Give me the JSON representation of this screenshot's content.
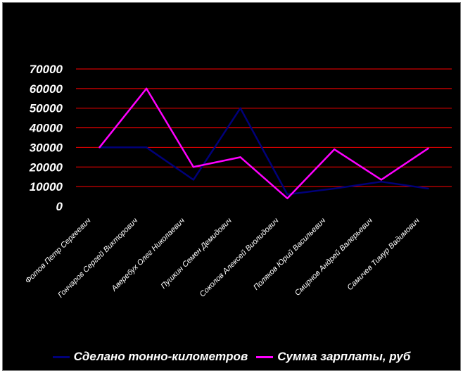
{
  "chart_data": {
    "type": "line",
    "categories": [
      "Фотов Петр Сергеевич",
      "Гончаров Сергей Викторович",
      "Аверебух Олег Николаевич",
      "Пушкин Семен Демидович",
      "Соколов Алексей Виолидович",
      "Поляков Юрий Васильевич",
      "Смирнов Андрей Валерьевич",
      "Самичев Тимур Вадимович"
    ],
    "series": [
      {
        "name": "Сделано тонно-километров",
        "color": "#00007a",
        "values": [
          30000,
          30000,
          13500,
          50000,
          6000,
          9000,
          12500,
          9000
        ]
      },
      {
        "name": "Сумма зарплаты, руб",
        "color": "#ff00ff",
        "values": [
          30000,
          60000,
          20000,
          25000,
          4000,
          29000,
          13500,
          29500
        ]
      }
    ],
    "ylim": [
      0,
      70000
    ],
    "yticks": [
      "70000",
      "60000",
      "50000",
      "40000",
      "30000",
      "20000",
      "10000",
      "0"
    ],
    "grid": true,
    "grid_color": "#ff0000",
    "background": "#000000",
    "legend_position": "bottom",
    "title": "",
    "xlabel": "",
    "ylabel": ""
  }
}
